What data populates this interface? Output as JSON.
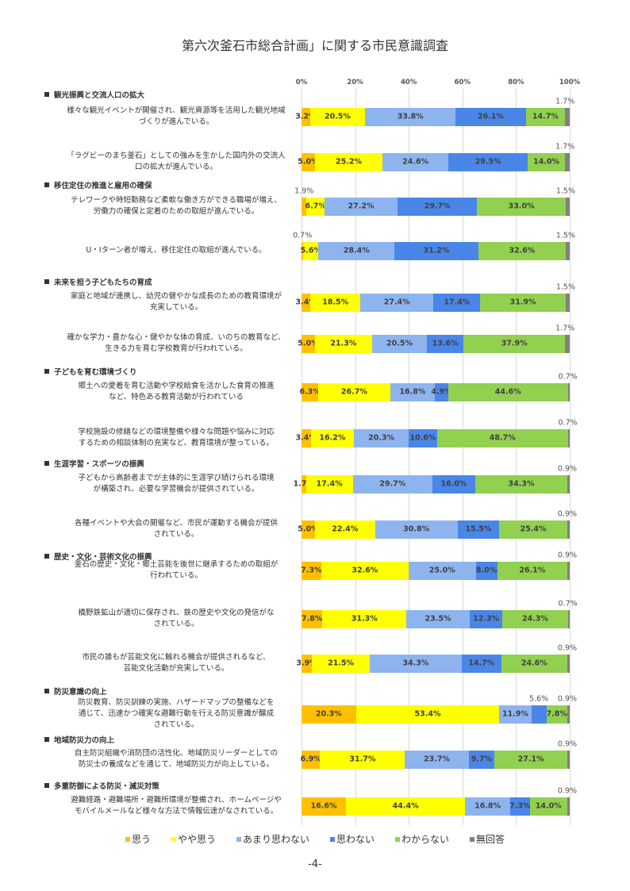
{
  "title": "第六次釜石市総合計画」に関する市民意識調査",
  "page_number": "-4-",
  "chart_data": {
    "type": "bar",
    "orientation": "horizontal-stacked-100",
    "xlim": [
      0,
      100
    ],
    "x_ticks": [
      "0%",
      "20%",
      "40%",
      "60%",
      "80%",
      "100%"
    ],
    "legend_position": "bottom",
    "series": [
      {
        "name": "思う",
        "color": "#FFC000"
      },
      {
        "name": "やや思う",
        "color": "#FFFF00"
      },
      {
        "name": "あまり思わない",
        "color": "#8EB4F0"
      },
      {
        "name": "思わない",
        "color": "#4A86E8"
      },
      {
        "name": "わからない",
        "color": "#92D050"
      },
      {
        "name": "無回答",
        "color": "#808080"
      }
    ],
    "groups": [
      {
        "header": "観光振興と交流人口の拡大",
        "items": [
          {
            "label": [
              "様々な観光イベントが開催され、観光資源等を活用した観光地域",
              "づくりが進んでいる。"
            ],
            "values": [
              3.2,
              20.5,
              33.8,
              26.1,
              14.7,
              1.7
            ]
          },
          {
            "label": [
              "「ラグビーのまち釜石」としての強みを生かした国内外の交流人",
              "口の拡大が進んでいる。"
            ],
            "values": [
              5.0,
              25.2,
              24.6,
              29.5,
              14.0,
              1.7
            ]
          }
        ]
      },
      {
        "header": "移住定住の推進と雇用の確保",
        "items": [
          {
            "label": [
              "テレワークや時短勤務など柔軟な働き方ができる職場が増え、",
              "労働力の確保と定着のための取組が進んでいる。"
            ],
            "values": [
              1.9,
              6.7,
              27.2,
              29.7,
              33.0,
              1.5
            ]
          },
          {
            "label": [
              "U・Iターン者が増え、移住定住の取組が進んでいる。"
            ],
            "values": [
              0.7,
              5.6,
              28.4,
              31.2,
              32.6,
              1.5
            ]
          }
        ]
      },
      {
        "header": "未来を担う子どもたちの育成",
        "items": [
          {
            "label": [
              "家庭と地域が連携し、幼児の健やかな成長のための教育環境が",
              "充実している。"
            ],
            "values": [
              3.4,
              18.5,
              27.4,
              17.4,
              31.9,
              1.5
            ]
          },
          {
            "label": [
              "確かな学力・豊かな心・健やかな体の育成、いのちの教育など、",
              "生きる力を育む学校教育が行われている。"
            ],
            "values": [
              5.0,
              21.3,
              20.5,
              13.6,
              37.9,
              1.7
            ]
          }
        ]
      },
      {
        "header": "子どもを育む環境づくり",
        "items": [
          {
            "label": [
              "郷土への愛着を育む活動や学校給食を活かした食育の推進",
              "など、特色ある教育活動が行われている"
            ],
            "values": [
              6.3,
              26.7,
              16.8,
              4.9,
              44.6,
              0.7
            ]
          },
          {
            "label": [
              "学校施設の修繕などの環境整備や様々な問題や悩みに対応",
              "するための相談体制の充実など、教育環境が整っている。"
            ],
            "values": [
              3.4,
              16.2,
              20.3,
              10.6,
              48.7,
              0.7
            ]
          }
        ]
      },
      {
        "header": "生涯学習・スポーツの振興",
        "items": [
          {
            "label": [
              "子どもから高齢者までが主体的に生涯学び続けられる環境",
              "が構築され、必要な学習機会が提供されている。"
            ],
            "values": [
              1.7,
              17.4,
              29.7,
              16.0,
              34.3,
              0.9
            ]
          },
          {
            "label": [
              "各種イベントや大会の開催など、市民が運動する機会が提供",
              "されている。"
            ],
            "values": [
              5.0,
              22.4,
              30.8,
              15.5,
              25.4,
              0.9
            ]
          }
        ]
      },
      {
        "header": "歴史・文化・芸術文化の振興",
        "items": [
          {
            "label": [
              "釜石の歴史・文化・郷土芸能を後世に継承するための取組が",
              "行われている。"
            ],
            "values": [
              7.3,
              32.6,
              25.0,
              8.0,
              26.1,
              0.9
            ]
          },
          {
            "label": [
              "橋野鉄鉱山が適切に保存され、鉄の歴史や文化の発信がな",
              "されている。"
            ],
            "values": [
              7.8,
              31.3,
              23.5,
              12.3,
              24.3,
              0.7
            ]
          },
          {
            "label": [
              "市民の誰もが芸能文化に触れる機会が提供されるなど、",
              "芸能文化活動が充実している。"
            ],
            "values": [
              3.9,
              21.5,
              34.3,
              14.7,
              24.6,
              0.9
            ]
          }
        ]
      },
      {
        "header": "防災意識の向上",
        "items": [
          {
            "label": [
              "防災教育、防災訓練の実施、ハザードマップの整備などを",
              "通じて、迅速かつ確実な避難行動を行える防災意識が醸成",
              "されている。"
            ],
            "values": [
              20.3,
              53.4,
              11.9,
              5.6,
              7.8,
              0.9
            ]
          }
        ]
      },
      {
        "header": "地域防災力の向上",
        "items": [
          {
            "label": [
              "自主防災組織や消防団の活性化、地域防災リーダーとしての",
              "防災士の養成などを通じて、地域防災力が向上している。"
            ],
            "values": [
              6.9,
              31.7,
              23.7,
              9.7,
              27.1,
              0.9
            ]
          }
        ]
      },
      {
        "header": "多重防御による防災・減災対策",
        "items": [
          {
            "label": [
              "避難経路・避難場所・避難所環境が整備され、ホームページや",
              "モバイルメールなど様々な方法で情報伝達がなされている。"
            ],
            "values": [
              16.6,
              44.4,
              16.8,
              7.3,
              14.0,
              0.9
            ]
          }
        ]
      }
    ]
  }
}
